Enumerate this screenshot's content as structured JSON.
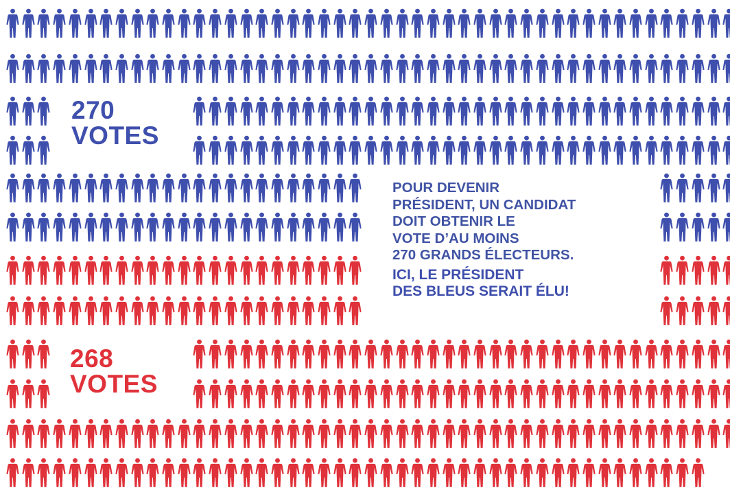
{
  "colors": {
    "blue": "#3f4fad",
    "red": "#e0323a",
    "text": "#4053a4"
  },
  "labels": {
    "blue_number": "270",
    "blue_word": "VOTES",
    "red_number": "268",
    "red_word": "VOTES"
  },
  "info": {
    "lines": [
      "POUR DEVENIR",
      "PRÉSIDENT, UN CANDIDAT",
      "DOIT OBTENIR LE",
      "VOTE D’AU MOINS",
      "270 GRANDS ÉLECTEURS."
    ],
    "highlight": [
      "ICI, LE PRÉSIDENT",
      "DES BLEUS SERAIT ÉLU!"
    ]
  },
  "chart_data": {
    "type": "pictogram",
    "series": [
      {
        "name": "270 VOTES",
        "value": 270,
        "color": "#3f4fad"
      },
      {
        "name": "268 VOTES",
        "value": 268,
        "color": "#e0323a"
      }
    ],
    "annotations": [
      "POUR DEVENIR PRÉSIDENT, UN CANDIDAT DOIT OBTENIR LE VOTE D’AU MOINS 270 GRANDS ÉLECTEURS.",
      "ICI, LE PRÉSIDENT DES BLEUS SERAIT ÉLU!"
    ]
  }
}
